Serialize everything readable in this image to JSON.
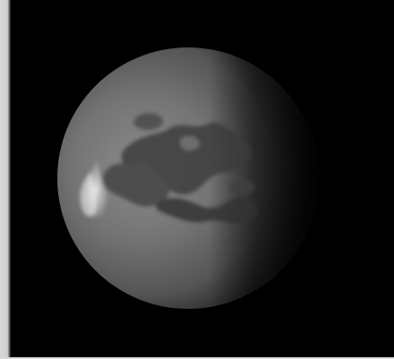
{
  "image": {
    "subject_icon": "moon-icon",
    "background_color": "#000000",
    "edge_color": "#d6d6d8"
  }
}
